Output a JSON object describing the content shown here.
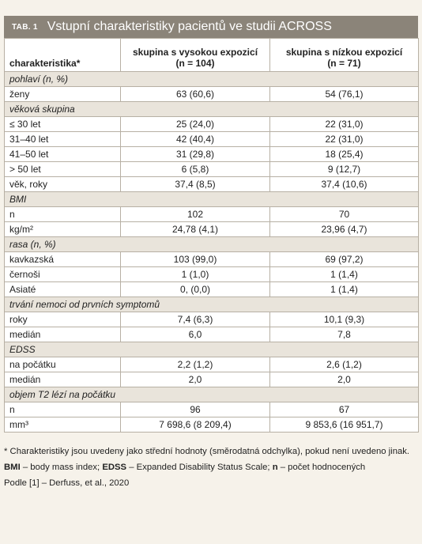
{
  "title": {
    "tab_label": "TAB. 1",
    "text": "Vstupní charakteristiky pacientů ve studii ACROSS"
  },
  "table": {
    "headers": {
      "col1": "charakteristika*",
      "col2_line1": "skupina s vysokou expozicí",
      "col2_line2": "(n = 104)",
      "col3_line1": "skupina s nízkou expozicí",
      "col3_line2": "(n = 71)"
    },
    "rows": [
      {
        "type": "section",
        "label": "pohlaví (n, %)"
      },
      {
        "type": "data",
        "label": "ženy",
        "high": "63 (60,6)",
        "low": "54 (76,1)"
      },
      {
        "type": "section",
        "label": "věková skupina"
      },
      {
        "type": "data",
        "label": "≤ 30 let",
        "high": "25 (24,0)",
        "low": "22 (31,0)"
      },
      {
        "type": "data",
        "label": "31–40 let",
        "high": "42 (40,4)",
        "low": "22 (31,0)"
      },
      {
        "type": "data",
        "label": "41–50 let",
        "high": "31 (29,8)",
        "low": "18 (25,4)"
      },
      {
        "type": "data",
        "label": "> 50 let",
        "high": "6 (5,8)",
        "low": "9 (12,7)"
      },
      {
        "type": "data",
        "label": "věk, roky",
        "high": "37,4 (8,5)",
        "low": "37,4 (10,6)"
      },
      {
        "type": "section",
        "label": "BMI"
      },
      {
        "type": "data",
        "label": "n",
        "high": "102",
        "low": "70"
      },
      {
        "type": "data",
        "label": "kg/m²",
        "high": "24,78 (4,1)",
        "low": "23,96 (4,7)"
      },
      {
        "type": "section",
        "label": "rasa (n, %)"
      },
      {
        "type": "data",
        "label": "kavkazská",
        "high": "103 (99,0)",
        "low": "69 (97,2)"
      },
      {
        "type": "data",
        "label": "černoši",
        "high": "1 (1,0)",
        "low": "1 (1,4)"
      },
      {
        "type": "data",
        "label": "Asiaté",
        "high": "0, (0,0)",
        "low": "1 (1,4)"
      },
      {
        "type": "section",
        "label": "trvání nemoci od prvních symptomů"
      },
      {
        "type": "data",
        "label": "roky",
        "high": "7,4 (6,3)",
        "low": "10,1 (9,3)"
      },
      {
        "type": "data",
        "label": "medián",
        "high": "6,0",
        "low": "7,8"
      },
      {
        "type": "section",
        "label": "EDSS"
      },
      {
        "type": "data",
        "label": "na počátku",
        "high": "2,2 (1,2)",
        "low": "2,6 (1,2)"
      },
      {
        "type": "data",
        "label": "medián",
        "high": "2,0",
        "low": "2,0"
      },
      {
        "type": "section",
        "label": "objem T2 lézí na počátku"
      },
      {
        "type": "data",
        "label": "n",
        "high": "96",
        "low": "67"
      },
      {
        "type": "data",
        "label": "mm³",
        "high": "7 698,6 (8 209,4)",
        "low": "9 853,6 (16 951,7)"
      }
    ]
  },
  "footnotes": {
    "note1": "* Charakteristiky jsou uvedeny jako střední hodnoty (směrodatná odchylka), pokud není uvedeno jinak.",
    "abbr": [
      {
        "term": "BMI",
        "def": " – body mass index; "
      },
      {
        "term": "EDSS",
        "def": " – Expanded Disability Status Scale; "
      },
      {
        "term": "n",
        "def": " – počet hodnocených"
      }
    ],
    "source": "Podle [1] – Derfuss, et al., 2020"
  },
  "colors": {
    "title_bar": "#8b8479",
    "section_row": "#e9e4db",
    "page_bg": "#f6f2ea",
    "border": "#b7b0a4"
  }
}
